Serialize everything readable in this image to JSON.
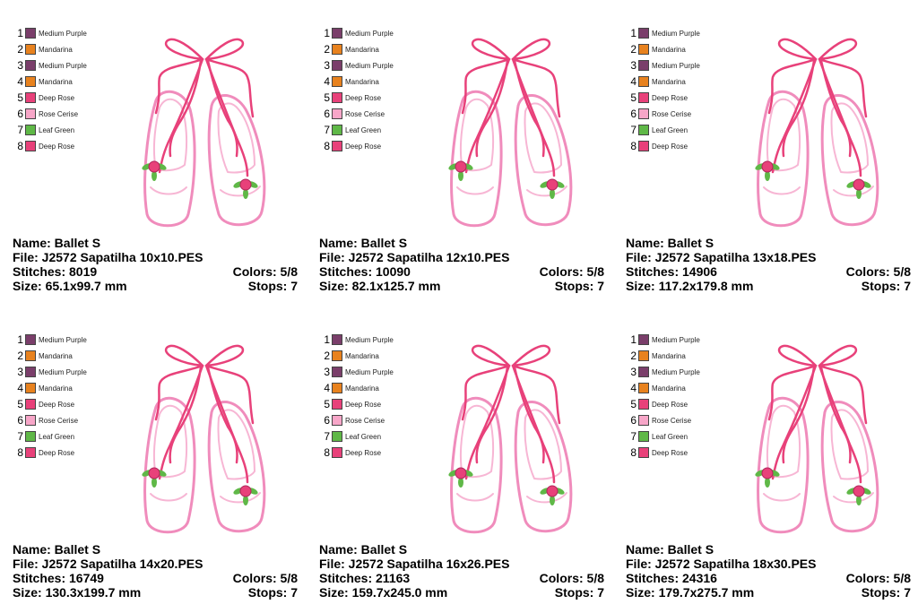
{
  "legend": [
    {
      "num": "1",
      "label": "Medium Purple",
      "color": "#7a3e6a"
    },
    {
      "num": "2",
      "label": "Mandarina",
      "color": "#e8821e"
    },
    {
      "num": "3",
      "label": "Medium Purple",
      "color": "#7a3e6a"
    },
    {
      "num": "4",
      "label": "Mandarina",
      "color": "#e8821e"
    },
    {
      "num": "5",
      "label": "Deep Rose",
      "color": "#e8417a"
    },
    {
      "num": "6",
      "label": "Rose Cerise",
      "color": "#f7a6c8"
    },
    {
      "num": "7",
      "label": "Leaf Green",
      "color": "#5fb847"
    },
    {
      "num": "8",
      "label": "Deep Rose",
      "color": "#e8417a"
    }
  ],
  "designs": [
    {
      "name": "Name: Ballet S",
      "file": "File: J2572 Sapatilha 10x10.PES",
      "stitches": "Stitches: 8019",
      "colors": "Colors: 5/8",
      "size": "Size: 65.1x99.7 mm",
      "stops": "Stops: 7"
    },
    {
      "name": "Name: Ballet S",
      "file": "File: J2572 Sapatilha 12x10.PES",
      "stitches": "Stitches: 10090",
      "colors": "Colors: 5/8",
      "size": "Size: 82.1x125.7 mm",
      "stops": "Stops: 7"
    },
    {
      "name": "Name: Ballet S",
      "file": "File: J2572 Sapatilha 13x18.PES",
      "stitches": "Stitches: 14906",
      "colors": "Colors: 5/8",
      "size": "Size: 117.2x179.8 mm",
      "stops": "Stops: 7"
    },
    {
      "name": "Name: Ballet S",
      "file": "File: J2572 Sapatilha 14x20.PES",
      "stitches": "Stitches: 16749",
      "colors": "Colors: 5/8",
      "size": "Size: 130.3x199.7 mm",
      "stops": "Stops: 7"
    },
    {
      "name": "Name: Ballet S",
      "file": "File: J2572 Sapatilha 16x26.PES",
      "stitches": "Stitches: 21163",
      "colors": "Colors: 5/8",
      "size": "Size: 159.7x245.0 mm",
      "stops": "Stops: 7"
    },
    {
      "name": "Name: Ballet S",
      "file": "File: J2572 Sapatilha 18x30.PES",
      "stitches": "Stitches: 24316",
      "colors": "Colors: 5/8",
      "size": "Size: 179.7x275.7 mm",
      "stops": "Stops: 7"
    }
  ],
  "art_colors": {
    "ribbon": "#e8417a",
    "shoe_outline": "#f08cbc",
    "shoe_inner": "#f7b6d4",
    "rose": "#e8417a",
    "leaf": "#5fb847"
  }
}
